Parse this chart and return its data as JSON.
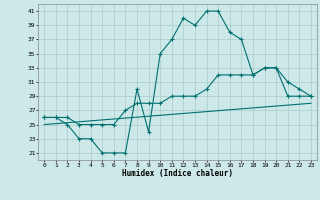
{
  "xlabel": "Humidex (Indice chaleur)",
  "ylabel": "",
  "bg_color": "#cce8e8",
  "grid_color": "#aacccc",
  "line_color": "#007070",
  "xlim": [
    -0.5,
    23.5
  ],
  "ylim": [
    20,
    42
  ],
  "xticks": [
    0,
    1,
    2,
    3,
    4,
    5,
    6,
    7,
    8,
    9,
    10,
    11,
    12,
    13,
    14,
    15,
    16,
    17,
    18,
    19,
    20,
    21,
    22,
    23
  ],
  "yticks": [
    21,
    23,
    25,
    27,
    29,
    31,
    33,
    35,
    37,
    39,
    41
  ],
  "line1_x": [
    0,
    1,
    2,
    3,
    4,
    5,
    6,
    7,
    8,
    9,
    10,
    11,
    12,
    13,
    14,
    15,
    16,
    17,
    18,
    19,
    20,
    21,
    22,
    23
  ],
  "line1_y": [
    26,
    26,
    25,
    23,
    23,
    21,
    21,
    21,
    30,
    24,
    35,
    37,
    40,
    39,
    41,
    41,
    38,
    37,
    32,
    33,
    33,
    29,
    29,
    29
  ],
  "line2_x": [
    0,
    1,
    2,
    3,
    4,
    5,
    6,
    7,
    8,
    9,
    10,
    11,
    12,
    13,
    14,
    15,
    16,
    17,
    18,
    19,
    20,
    21,
    22,
    23
  ],
  "line2_y": [
    26,
    26,
    26,
    25,
    25,
    25,
    25,
    27,
    28,
    28,
    28,
    29,
    29,
    29,
    30,
    32,
    32,
    32,
    32,
    33,
    33,
    31,
    30,
    29
  ],
  "line3_x": [
    0,
    23
  ],
  "line3_y": [
    25,
    28
  ]
}
